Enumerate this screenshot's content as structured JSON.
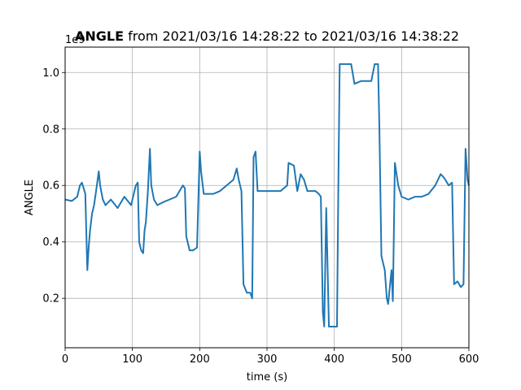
{
  "chart_data": {
    "type": "line",
    "title_bold": "ANGLE",
    "title_rest": " from 2021/03/16 14:28:22 to 2021/03/16 14:38:22",
    "xlabel": "time (s)",
    "ylabel": "ANGLE",
    "y_offset_label": "1e9",
    "xlim": [
      0,
      600
    ],
    "ylim": [
      0.025,
      1.09
    ],
    "x_ticks": [
      0,
      100,
      200,
      300,
      400,
      500,
      600
    ],
    "y_ticks": [
      0.2,
      0.4,
      0.6,
      0.8,
      1.0
    ],
    "x_tick_labels": [
      "0",
      "100",
      "200",
      "300",
      "400",
      "500",
      "600"
    ],
    "y_tick_labels": [
      "0.2",
      "0.4",
      "0.6",
      "0.8",
      "1.0"
    ],
    "grid": true,
    "series": [
      {
        "color": "#1f77b4",
        "x": [
          0,
          10,
          18,
          22,
          25,
          30,
          33,
          35,
          37,
          40,
          43,
          46,
          50,
          52,
          56,
          60,
          68,
          78,
          88,
          98,
          105,
          108,
          110,
          113,
          116,
          118,
          120,
          123,
          126,
          128,
          132,
          137,
          145,
          155,
          165,
          175,
          178,
          180,
          185,
          190,
          196,
          200,
          202,
          206,
          210,
          220,
          230,
          240,
          250,
          255,
          258,
          262,
          265,
          270,
          275,
          278,
          280,
          283,
          286,
          290,
          300,
          310,
          320,
          330,
          332,
          340,
          345,
          350,
          355,
          360,
          365,
          372,
          377,
          380,
          383,
          385,
          388,
          392,
          398,
          404,
          406,
          408,
          412,
          420,
          425,
          430,
          440,
          450,
          455,
          460,
          465,
          467,
          470,
          475,
          478,
          480,
          485,
          487,
          490,
          495,
          500,
          510,
          520,
          530,
          540,
          550,
          558,
          562,
          565,
          570,
          575,
          578,
          583,
          588,
          592,
          595,
          598,
          600
        ],
        "y": [
          0.55,
          0.545,
          0.56,
          0.6,
          0.61,
          0.57,
          0.3,
          0.38,
          0.44,
          0.5,
          0.53,
          0.58,
          0.65,
          0.6,
          0.55,
          0.53,
          0.55,
          0.52,
          0.56,
          0.53,
          0.6,
          0.61,
          0.4,
          0.37,
          0.36,
          0.44,
          0.47,
          0.58,
          0.73,
          0.6,
          0.55,
          0.53,
          0.54,
          0.55,
          0.56,
          0.6,
          0.59,
          0.42,
          0.37,
          0.37,
          0.38,
          0.72,
          0.65,
          0.57,
          0.57,
          0.57,
          0.58,
          0.6,
          0.62,
          0.66,
          0.62,
          0.58,
          0.25,
          0.22,
          0.22,
          0.2,
          0.7,
          0.72,
          0.58,
          0.58,
          0.58,
          0.58,
          0.58,
          0.6,
          0.68,
          0.67,
          0.58,
          0.64,
          0.62,
          0.58,
          0.58,
          0.58,
          0.57,
          0.56,
          0.15,
          0.1,
          0.52,
          0.1,
          0.1,
          0.1,
          0.6,
          1.03,
          1.03,
          1.03,
          1.03,
          0.96,
          0.97,
          0.97,
          0.97,
          1.03,
          1.03,
          0.8,
          0.35,
          0.3,
          0.2,
          0.18,
          0.3,
          0.19,
          0.68,
          0.6,
          0.56,
          0.55,
          0.56,
          0.56,
          0.57,
          0.6,
          0.64,
          0.63,
          0.62,
          0.6,
          0.61,
          0.25,
          0.26,
          0.24,
          0.25,
          0.73,
          0.62,
          0.6
        ]
      }
    ]
  }
}
